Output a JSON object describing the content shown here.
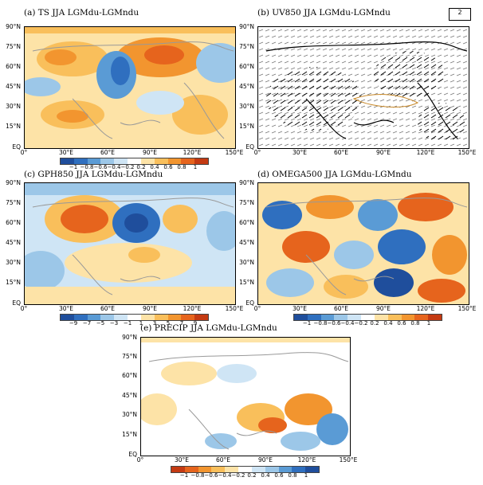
{
  "panels": [
    {
      "id": "a",
      "title": "(a) TS JJA LGMdu-LGMndu",
      "colorbar": [
        "−1",
        "−0.8",
        "−0.6",
        "−0.4",
        "−0.2",
        "0.2",
        "0.4",
        "0.6",
        "0.8",
        "1"
      ]
    },
    {
      "id": "b",
      "title": "(b) UV850 JJA LGMdu-LGMndu",
      "reference_vector": "2"
    },
    {
      "id": "c",
      "title": "(c) GPH850 JJA LGMdu-LGMndu",
      "colorbar": [
        "−9",
        "−7",
        "−5",
        "−3",
        "−1",
        "1",
        "3",
        "5",
        "7",
        "9"
      ]
    },
    {
      "id": "d",
      "title": "(d) OMEGA500 JJA LGMdu-LGMndu",
      "colorbar": [
        "−1",
        "−0.8",
        "−0.6",
        "−0.4",
        "−0.2",
        "0.2",
        "0.4",
        "0.6",
        "0.8",
        "1"
      ]
    },
    {
      "id": "e",
      "title": "(e) PRECIP JJA LGMdu-LGMndu",
      "colorbar": [
        "−1",
        "−0.8",
        "−0.6",
        "−0.4",
        "−0.2",
        "0.2",
        "0.4",
        "0.6",
        "0.8",
        "1"
      ]
    }
  ],
  "lat_labels": [
    "90°N",
    "75°N",
    "60°N",
    "45°N",
    "30°N",
    "15°N",
    "EQ"
  ],
  "lon_labels": [
    "0°",
    "30°E",
    "60°E",
    "90°E",
    "120°E",
    "150°E"
  ],
  "palette": [
    "#1f4e9c",
    "#2f6fbf",
    "#5a9bd5",
    "#9cc7e8",
    "#cfe5f5",
    "#ffffff",
    "#fde3a7",
    "#f9bf5b",
    "#f2952f",
    "#e6641d",
    "#c43a12"
  ]
}
